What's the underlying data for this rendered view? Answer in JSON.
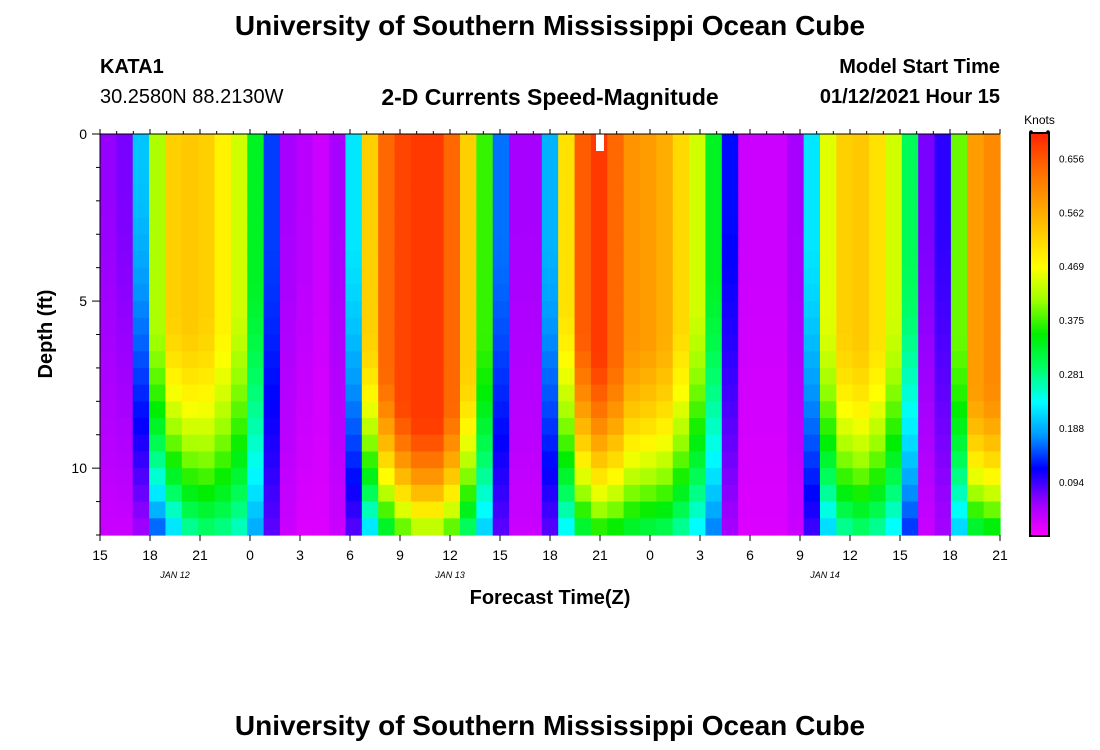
{
  "header": {
    "title": "University of Southern Mississippi Ocean Cube",
    "station_id": "KATA1",
    "station_coords": "30.2580N 88.2130W",
    "model_start_label": "Model Start Time",
    "model_start_value": "01/12/2021 Hour 15"
  },
  "footer": {
    "title": "University of Southern Mississippi Ocean Cube"
  },
  "chart_data": {
    "type": "heatmap",
    "title": "2-D Currents Speed-Magnitude",
    "xlabel": "Forecast Time(Z)",
    "ylabel": "Depth (ft)",
    "x_range_hours": [
      0,
      54
    ],
    "y_range_ft": [
      0,
      12
    ],
    "x_ticks": [
      {
        "h": 0,
        "label": "15"
      },
      {
        "h": 3,
        "label": "18"
      },
      {
        "h": 6,
        "label": "21"
      },
      {
        "h": 9,
        "label": "0"
      },
      {
        "h": 12,
        "label": "3"
      },
      {
        "h": 15,
        "label": "6"
      },
      {
        "h": 18,
        "label": "9"
      },
      {
        "h": 21,
        "label": "12"
      },
      {
        "h": 24,
        "label": "15"
      },
      {
        "h": 27,
        "label": "18"
      },
      {
        "h": 30,
        "label": "21"
      },
      {
        "h": 33,
        "label": "0"
      },
      {
        "h": 36,
        "label": "3"
      },
      {
        "h": 39,
        "label": "6"
      },
      {
        "h": 42,
        "label": "9"
      },
      {
        "h": 45,
        "label": "12"
      },
      {
        "h": 48,
        "label": "15"
      },
      {
        "h": 51,
        "label": "18"
      },
      {
        "h": 54,
        "label": "21"
      }
    ],
    "date_labels": [
      {
        "h": 4.5,
        "label": "JAN  12"
      },
      {
        "h": 21,
        "label": "JAN  13"
      },
      {
        "h": 43.5,
        "label": "JAN  14"
      }
    ],
    "y_ticks": [
      {
        "v": 0,
        "label": "0"
      },
      {
        "v": 5,
        "label": "5"
      },
      {
        "v": 10,
        "label": "10"
      }
    ],
    "colorbar": {
      "unit": "Knots",
      "min": 0.0,
      "max": 0.7,
      "ticks": [
        "0.094",
        "0.188",
        "0.281",
        "0.375",
        "0.469",
        "0.562",
        "0.656"
      ],
      "colors": [
        "#ff00ff",
        "#9900ff",
        "#0000ff",
        "#0099ff",
        "#00ffff",
        "#00ff66",
        "#00ee00",
        "#99ff00",
        "#ffff00",
        "#ffcc00",
        "#ff9900",
        "#ff6600",
        "#ff2200"
      ]
    },
    "series": [
      {
        "name": "surface_speed_knots",
        "values": [
          0.06,
          0.07,
          0.2,
          0.42,
          0.52,
          0.53,
          0.52,
          0.48,
          0.44,
          0.33,
          0.14,
          0.05,
          0.04,
          0.03,
          0.05,
          0.22,
          0.52,
          0.64,
          0.67,
          0.68,
          0.68,
          0.64,
          0.52,
          0.37,
          0.16,
          0.05,
          0.05,
          0.19,
          0.5,
          0.65,
          0.68,
          0.64,
          0.59,
          0.58,
          0.56,
          0.51,
          0.44,
          0.33,
          0.12,
          0.03,
          0.03,
          0.03,
          0.05,
          0.22,
          0.45,
          0.52,
          0.53,
          0.5,
          0.44,
          0.3,
          0.07,
          0.1,
          0.39,
          0.58,
          0.6
        ]
      },
      {
        "name": "core_depth_ft",
        "values": [
          1,
          1,
          1,
          5.5,
          5.5,
          5.5,
          5.5,
          5.5,
          5,
          4,
          3,
          2,
          2,
          2,
          2,
          3,
          6,
          7,
          8,
          8.5,
          8.5,
          8,
          7,
          6,
          3,
          2,
          2,
          3,
          5,
          6,
          6.5,
          6.5,
          6,
          6,
          6,
          5.5,
          5,
          4,
          2,
          2,
          2,
          2,
          2,
          3,
          5.5,
          6,
          6,
          6,
          5.5,
          4,
          2,
          2,
          6,
          7.5,
          7.5
        ]
      },
      {
        "name": "bottom_speed_knots",
        "values": [
          0.03,
          0.03,
          0.05,
          0.14,
          0.2,
          0.26,
          0.28,
          0.27,
          0.25,
          0.18,
          0.08,
          0.03,
          0.02,
          0.02,
          0.03,
          0.08,
          0.2,
          0.3,
          0.36,
          0.4,
          0.4,
          0.36,
          0.28,
          0.2,
          0.08,
          0.03,
          0.03,
          0.08,
          0.22,
          0.3,
          0.34,
          0.33,
          0.31,
          0.3,
          0.29,
          0.26,
          0.22,
          0.16,
          0.05,
          0.02,
          0.02,
          0.02,
          0.03,
          0.09,
          0.2,
          0.26,
          0.28,
          0.26,
          0.22,
          0.13,
          0.03,
          0.05,
          0.2,
          0.3,
          0.32
        ]
      }
    ],
    "annotations": [
      {
        "type": "current_time_marker",
        "h": 30
      }
    ]
  }
}
